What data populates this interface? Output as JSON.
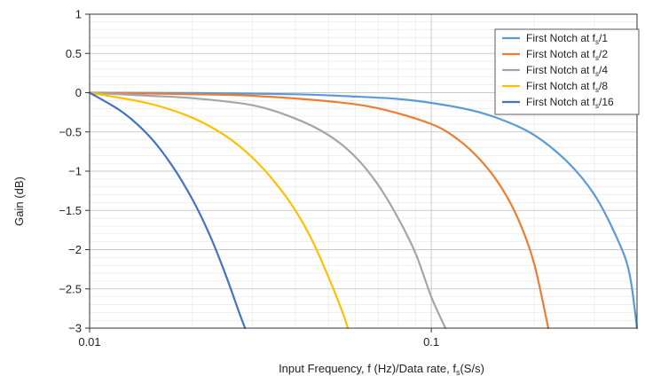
{
  "chart_data": {
    "type": "line",
    "title": "",
    "xlabel": "Input Frequency, f (Hz)/Data rate, f",
    "xlabel_sub": "s",
    "xlabel_tail": "(S/s)",
    "ylabel": "Gain (dB)",
    "xscale": "log",
    "xlim": [
      0.01,
      0.4
    ],
    "ylim": [
      -3,
      1
    ],
    "x_ticks": [
      0.01,
      0.1
    ],
    "x_tick_labels": [
      "0.01",
      "0.1"
    ],
    "y_ticks": [
      1,
      0.5,
      0,
      -0.5,
      -1,
      -1.5,
      -2,
      -2.5,
      -3
    ],
    "y_tick_labels": [
      "1",
      "0.5",
      "0",
      "−0.5",
      "−1",
      "−1.5",
      "−2",
      "−2.5",
      "−3"
    ],
    "grid": true,
    "legend_position": "top-right",
    "series": [
      {
        "name": "First Notch at f",
        "name_sub": "s",
        "name_tail": "/1",
        "color": "#5b9bd5",
        "x": [
          0.01,
          0.02,
          0.04,
          0.06,
          0.08,
          0.1,
          0.13,
          0.16,
          0.2,
          0.25,
          0.3,
          0.35,
          0.38,
          0.4
        ],
        "y": [
          0,
          -0.005,
          -0.02,
          -0.05,
          -0.08,
          -0.13,
          -0.22,
          -0.34,
          -0.54,
          -0.88,
          -1.3,
          -1.86,
          -2.3,
          -3.0
        ]
      },
      {
        "name": "First Notch at f",
        "name_sub": "s",
        "name_tail": "/2",
        "color": "#ed7d31",
        "x": [
          0.01,
          0.02,
          0.03,
          0.05,
          0.07,
          0.1,
          0.12,
          0.14,
          0.16,
          0.18,
          0.2,
          0.22
        ],
        "y": [
          0,
          -0.02,
          -0.04,
          -0.11,
          -0.2,
          -0.4,
          -0.6,
          -0.87,
          -1.2,
          -1.62,
          -2.18,
          -3.0
        ]
      },
      {
        "name": "First Notch at f",
        "name_sub": "s",
        "name_tail": "/4",
        "color": "#a5a5a5",
        "x": [
          0.01,
          0.015,
          0.02,
          0.03,
          0.04,
          0.05,
          0.06,
          0.07,
          0.08,
          0.09,
          0.1,
          0.11
        ],
        "y": [
          0,
          -0.04,
          -0.07,
          -0.16,
          -0.33,
          -0.54,
          -0.82,
          -1.18,
          -1.6,
          -2.05,
          -2.6,
          -3.0
        ]
      },
      {
        "name": "First Notch at f",
        "name_sub": "s",
        "name_tail": "/8",
        "color": "#ffc000",
        "x": [
          0.01,
          0.015,
          0.02,
          0.025,
          0.03,
          0.035,
          0.04,
          0.045,
          0.05,
          0.055,
          0.057
        ],
        "y": [
          0,
          -0.14,
          -0.32,
          -0.55,
          -0.83,
          -1.15,
          -1.5,
          -1.9,
          -2.35,
          -2.8,
          -3.0
        ]
      },
      {
        "name": "First Notch at f",
        "name_sub": "s",
        "name_tail": "/16",
        "color": "#4472c4",
        "x": [
          0.01,
          0.0125,
          0.015,
          0.0175,
          0.02,
          0.0225,
          0.025,
          0.0275,
          0.0285
        ],
        "y": [
          0,
          -0.25,
          -0.56,
          -0.94,
          -1.36,
          -1.82,
          -2.32,
          -2.82,
          -3.0
        ]
      }
    ]
  }
}
